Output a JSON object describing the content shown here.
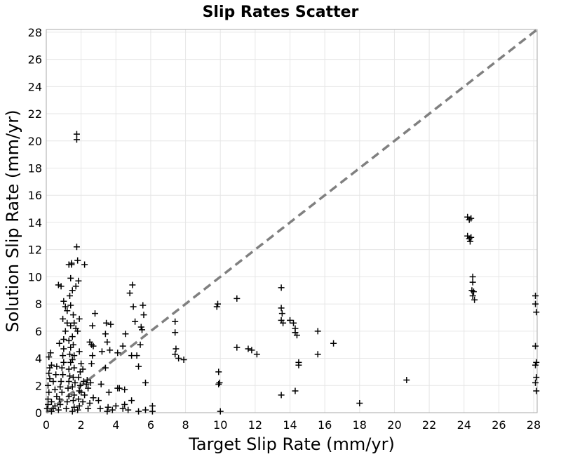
{
  "chart_data": {
    "type": "scatter",
    "title": "Slip Rates Scatter",
    "xlabel": "Target Slip Rate (mm/yr)",
    "ylabel": "Solution Slip Rate (mm/yr)",
    "xlim": [
      0,
      28.2
    ],
    "ylim": [
      0,
      28.2
    ],
    "xticks": [
      0,
      2,
      4,
      6,
      8,
      10,
      12,
      14,
      16,
      18,
      20,
      22,
      24,
      26,
      28
    ],
    "yticks": [
      0,
      2,
      4,
      6,
      8,
      10,
      12,
      14,
      16,
      18,
      20,
      22,
      24,
      26,
      28
    ],
    "grid": true,
    "marker": "plus",
    "colors": {
      "points": "#000000",
      "reference_line": "#808080",
      "grid": "#e6e6e6",
      "frame": "#aaaaaa"
    },
    "reference_line": {
      "style": "dashed",
      "from": [
        0,
        0
      ],
      "to": [
        28.2,
        28.2
      ]
    },
    "series": [
      {
        "points": [
          [
            0.05,
            0.3
          ],
          [
            0.1,
            0.6
          ],
          [
            0.1,
            1.0
          ],
          [
            0.15,
            1.5
          ],
          [
            0.1,
            2.0
          ],
          [
            0.2,
            2.5
          ],
          [
            0.15,
            2.9
          ],
          [
            0.2,
            3.3
          ],
          [
            0.3,
            3.5
          ],
          [
            0.15,
            4.1
          ],
          [
            0.25,
            4.4
          ],
          [
            0.3,
            0.1
          ],
          [
            0.4,
            0.3
          ],
          [
            0.5,
            0.5
          ],
          [
            0.3,
            0.8
          ],
          [
            0.6,
            1.2
          ],
          [
            0.5,
            1.7
          ],
          [
            0.4,
            2.3
          ],
          [
            0.55,
            2.8
          ],
          [
            0.6,
            3.4
          ],
          [
            0.7,
            0.2
          ],
          [
            0.8,
            0.6
          ],
          [
            0.75,
            1.0
          ],
          [
            0.9,
            1.5
          ],
          [
            0.8,
            1.9
          ],
          [
            0.85,
            2.3
          ],
          [
            0.95,
            2.8
          ],
          [
            0.9,
            3.3
          ],
          [
            1.0,
            3.7
          ],
          [
            0.95,
            4.2
          ],
          [
            1.0,
            4.7
          ],
          [
            0.75,
            5.1
          ],
          [
            1.0,
            5.4
          ],
          [
            1.1,
            6.0
          ],
          [
            0.95,
            6.9
          ],
          [
            0.7,
            9.4
          ],
          [
            0.85,
            9.3
          ],
          [
            1.0,
            8.2
          ],
          [
            1.1,
            7.8
          ],
          [
            1.2,
            7.5
          ],
          [
            1.15,
            0.3
          ],
          [
            1.2,
            0.8
          ],
          [
            1.3,
            1.2
          ],
          [
            1.25,
            1.8
          ],
          [
            1.3,
            2.3
          ],
          [
            1.35,
            2.7
          ],
          [
            1.3,
            3.2
          ],
          [
            1.4,
            3.7
          ],
          [
            1.35,
            4.3
          ],
          [
            1.4,
            4.8
          ],
          [
            1.3,
            5.3
          ],
          [
            1.4,
            6.4
          ],
          [
            1.2,
            6.6
          ],
          [
            1.4,
            7.9
          ],
          [
            1.35,
            8.6
          ],
          [
            1.4,
            9.9
          ],
          [
            1.3,
            10.9
          ],
          [
            1.45,
            11.0
          ],
          [
            1.5,
            9.0
          ],
          [
            1.45,
            10.9
          ],
          [
            1.5,
            0.1
          ],
          [
            1.6,
            0.4
          ],
          [
            1.55,
            0.9
          ],
          [
            1.6,
            1.3
          ],
          [
            1.5,
            1.9
          ],
          [
            1.65,
            2.2
          ],
          [
            1.55,
            2.6
          ],
          [
            1.6,
            3.3
          ],
          [
            1.5,
            3.9
          ],
          [
            1.6,
            4.2
          ],
          [
            1.55,
            5.0
          ],
          [
            1.5,
            5.6
          ],
          [
            1.6,
            6.6
          ],
          [
            1.7,
            6.2
          ],
          [
            1.55,
            7.2
          ],
          [
            1.7,
            9.3
          ],
          [
            1.8,
            11.2
          ],
          [
            1.75,
            12.2
          ],
          [
            1.75,
            20.1
          ],
          [
            1.75,
            20.5
          ],
          [
            1.8,
            0.2
          ],
          [
            1.9,
            0.5
          ],
          [
            1.85,
            1.0
          ],
          [
            1.9,
            1.6
          ],
          [
            1.95,
            2.0
          ],
          [
            1.85,
            2.6
          ],
          [
            1.95,
            3.0
          ],
          [
            2.0,
            3.6
          ],
          [
            1.9,
            4.5
          ],
          [
            1.8,
            6.0
          ],
          [
            1.9,
            6.9
          ],
          [
            1.85,
            9.7
          ],
          [
            2.0,
            1.5
          ],
          [
            2.1,
            0.8
          ],
          [
            2.2,
            1.3
          ],
          [
            2.15,
            2.3
          ],
          [
            2.3,
            2.1
          ],
          [
            2.35,
            2.4
          ],
          [
            2.2,
            10.9
          ],
          [
            2.1,
            3.2
          ],
          [
            2.4,
            0.3
          ],
          [
            2.5,
            0.7
          ],
          [
            2.4,
            1.8
          ],
          [
            2.55,
            2.2
          ],
          [
            2.6,
            3.6
          ],
          [
            2.65,
            4.2
          ],
          [
            2.6,
            5.0
          ],
          [
            2.65,
            6.4
          ],
          [
            2.8,
            7.3
          ],
          [
            2.7,
            4.9
          ],
          [
            2.5,
            5.2
          ],
          [
            2.7,
            1.1
          ],
          [
            3.0,
            0.9
          ],
          [
            3.1,
            0.3
          ],
          [
            3.15,
            2.1
          ],
          [
            3.2,
            4.5
          ],
          [
            3.4,
            5.8
          ],
          [
            3.45,
            6.6
          ],
          [
            3.5,
            5.2
          ],
          [
            3.4,
            3.3
          ],
          [
            3.5,
            0.1
          ],
          [
            3.55,
            0.4
          ],
          [
            3.6,
            1.5
          ],
          [
            3.65,
            4.6
          ],
          [
            3.7,
            6.5
          ],
          [
            3.8,
            0.2
          ],
          [
            4.0,
            0.5
          ],
          [
            4.1,
            1.8
          ],
          [
            4.1,
            4.4
          ],
          [
            4.2,
            1.8
          ],
          [
            4.4,
            0.3
          ],
          [
            4.4,
            4.9
          ],
          [
            4.5,
            0.6
          ],
          [
            4.5,
            1.7
          ],
          [
            4.55,
            5.8
          ],
          [
            4.7,
            0.2
          ],
          [
            4.9,
            0.9
          ],
          [
            4.9,
            4.2
          ],
          [
            4.95,
            9.4
          ],
          [
            4.8,
            8.8
          ],
          [
            5.0,
            7.8
          ],
          [
            5.1,
            6.7
          ],
          [
            5.2,
            4.2
          ],
          [
            5.3,
            3.4
          ],
          [
            5.3,
            0.1
          ],
          [
            5.4,
            5.0
          ],
          [
            5.45,
            6.3
          ],
          [
            5.5,
            6.1
          ],
          [
            5.55,
            7.9
          ],
          [
            5.6,
            7.2
          ],
          [
            5.7,
            2.2
          ],
          [
            5.7,
            0.2
          ],
          [
            6.1,
            0.5
          ],
          [
            6.1,
            0.1
          ],
          [
            7.4,
            6.7
          ],
          [
            7.4,
            5.9
          ],
          [
            7.45,
            4.7
          ],
          [
            7.4,
            4.3
          ],
          [
            7.6,
            4.0
          ],
          [
            7.9,
            3.9
          ],
          [
            9.8,
            7.8
          ],
          [
            9.85,
            8.0
          ],
          [
            9.9,
            3.0
          ],
          [
            9.95,
            2.2
          ],
          [
            9.9,
            2.1
          ],
          [
            10.0,
            0.1
          ],
          [
            10.95,
            8.4
          ],
          [
            10.95,
            4.8
          ],
          [
            11.6,
            4.7
          ],
          [
            11.8,
            4.6
          ],
          [
            12.1,
            4.3
          ],
          [
            13.5,
            9.2
          ],
          [
            13.5,
            7.7
          ],
          [
            13.55,
            7.3
          ],
          [
            13.5,
            6.8
          ],
          [
            13.6,
            6.6
          ],
          [
            13.5,
            1.3
          ],
          [
            14.0,
            6.8
          ],
          [
            14.2,
            6.6
          ],
          [
            14.3,
            6.2
          ],
          [
            14.3,
            5.9
          ],
          [
            14.4,
            5.7
          ],
          [
            14.3,
            1.6
          ],
          [
            14.5,
            3.7
          ],
          [
            14.5,
            3.5
          ],
          [
            15.6,
            6.0
          ],
          [
            15.6,
            4.3
          ],
          [
            16.5,
            5.1
          ],
          [
            18.0,
            0.7
          ],
          [
            20.7,
            2.4
          ],
          [
            24.2,
            14.4
          ],
          [
            24.3,
            14.2
          ],
          [
            24.4,
            14.3
          ],
          [
            24.2,
            13.0
          ],
          [
            24.3,
            12.8
          ],
          [
            24.35,
            12.6
          ],
          [
            24.4,
            12.9
          ],
          [
            24.5,
            10.0
          ],
          [
            24.5,
            9.6
          ],
          [
            24.45,
            9.0
          ],
          [
            24.55,
            8.9
          ],
          [
            24.5,
            8.6
          ],
          [
            24.6,
            8.3
          ],
          [
            28.1,
            8.6
          ],
          [
            28.1,
            8.0
          ],
          [
            28.15,
            7.4
          ],
          [
            28.1,
            4.9
          ],
          [
            28.15,
            3.7
          ],
          [
            28.1,
            3.5
          ],
          [
            28.15,
            2.6
          ],
          [
            28.1,
            2.2
          ],
          [
            28.15,
            1.6
          ]
        ]
      }
    ]
  }
}
